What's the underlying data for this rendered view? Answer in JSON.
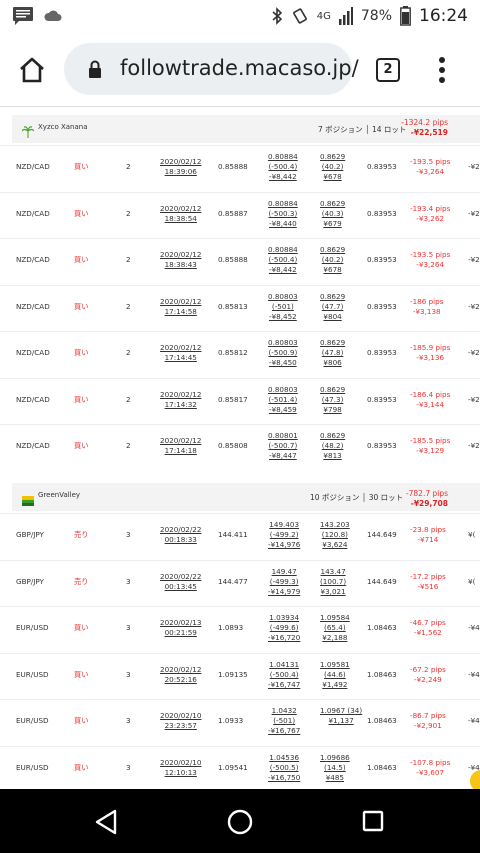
{
  "status_bar": {
    "time": "16:24",
    "battery": "78%",
    "network": "4G"
  },
  "browser": {
    "url": "followtrade.macaso.jp/",
    "tab_count": "2"
  },
  "groups": [
    {
      "name": "Xyzco Xanana",
      "summary": "7 ポジション │ 14 ロット",
      "pips": "-1324.2 pips",
      "yen": "-¥22,519",
      "rows": [
        {
          "pair": "NZD/CAD",
          "side": "買い",
          "qty": "2",
          "date": "2020/02/12",
          "time": "18:39:06",
          "open": "0.85888",
          "sl": [
            "0.80884",
            "(-500.4)",
            "-¥8,442"
          ],
          "tp": [
            "0.8629",
            "(40.2)",
            "¥678"
          ],
          "current": "0.83953",
          "pips": "-193.5 pips",
          "yen": "-¥3,264",
          "rest": "-¥2"
        },
        {
          "pair": "NZD/CAD",
          "side": "買い",
          "qty": "2",
          "date": "2020/02/12",
          "time": "18:38:54",
          "open": "0.85887",
          "sl": [
            "0.80884",
            "(-500.3)",
            "-¥8,440"
          ],
          "tp": [
            "0.8629",
            "(40.3)",
            "¥679"
          ],
          "current": "0.83953",
          "pips": "-193.4 pips",
          "yen": "-¥3,262",
          "rest": "-¥2"
        },
        {
          "pair": "NZD/CAD",
          "side": "買い",
          "qty": "2",
          "date": "2020/02/12",
          "time": "18:38:43",
          "open": "0.85888",
          "sl": [
            "0.80884",
            "(-500.4)",
            "-¥8,442"
          ],
          "tp": [
            "0.8629",
            "(40.2)",
            "¥678"
          ],
          "current": "0.83953",
          "pips": "-193.5 pips",
          "yen": "-¥3,264",
          "rest": "-¥2"
        },
        {
          "pair": "NZD/CAD",
          "side": "買い",
          "qty": "2",
          "date": "2020/02/12",
          "time": "17:14:58",
          "open": "0.85813",
          "sl": [
            "0.80803",
            "(-501)",
            "-¥8,452"
          ],
          "tp": [
            "0.8629",
            "(47.7)",
            "¥804"
          ],
          "current": "0.83953",
          "pips": "-186 pips",
          "yen": "-¥3,138",
          "rest": "-¥2"
        },
        {
          "pair": "NZD/CAD",
          "side": "買い",
          "qty": "2",
          "date": "2020/02/12",
          "time": "17:14:45",
          "open": "0.85812",
          "sl": [
            "0.80803",
            "(-500.9)",
            "-¥8,450"
          ],
          "tp": [
            "0.8629",
            "(47.8)",
            "¥806"
          ],
          "current": "0.83953",
          "pips": "-185.9 pips",
          "yen": "-¥3,136",
          "rest": "-¥2"
        },
        {
          "pair": "NZD/CAD",
          "side": "買い",
          "qty": "2",
          "date": "2020/02/12",
          "time": "17:14:32",
          "open": "0.85817",
          "sl": [
            "0.80803",
            "(-501.4)",
            "-¥8,459"
          ],
          "tp": [
            "0.8629",
            "(47.3)",
            "¥798"
          ],
          "current": "0.83953",
          "pips": "-186.4 pips",
          "yen": "-¥3,144",
          "rest": "-¥2"
        },
        {
          "pair": "NZD/CAD",
          "side": "買い",
          "qty": "2",
          "date": "2020/02/12",
          "time": "17:14:18",
          "open": "0.85808",
          "sl": [
            "0.80801",
            "(-500.7)",
            "-¥8,447"
          ],
          "tp": [
            "0.8629",
            "(48.2)",
            "¥813"
          ],
          "current": "0.83953",
          "pips": "-185.5 pips",
          "yen": "-¥3,129",
          "rest": "-¥2"
        }
      ]
    },
    {
      "name": "GreenValley",
      "summary": "10 ポジション │ 30 ロット",
      "pips": "-782.7 pips",
      "yen": "-¥29,708",
      "rows": [
        {
          "pair": "GBP/JPY",
          "side": "売り",
          "qty": "3",
          "date": "2020/02/22",
          "time": "00:18:33",
          "open": "144.411",
          "sl": [
            "149.403",
            "(-499.2)",
            "-¥14,976"
          ],
          "tp": [
            "143.203",
            "(120.8)",
            "¥3,624"
          ],
          "current": "144.649",
          "pips": "-23.8 pips",
          "yen": "-¥714",
          "rest": "¥("
        },
        {
          "pair": "GBP/JPY",
          "side": "売り",
          "qty": "3",
          "date": "2020/02/22",
          "time": "00:13:45",
          "open": "144.477",
          "sl": [
            "149.47",
            "(-499.3)",
            "-¥14,979"
          ],
          "tp": [
            "143.47",
            "(100.7)",
            "¥3,021"
          ],
          "current": "144.649",
          "pips": "-17.2 pips",
          "yen": "-¥516",
          "rest": "¥("
        },
        {
          "pair": "EUR/USD",
          "side": "買い",
          "qty": "3",
          "date": "2020/02/13",
          "time": "00:21:59",
          "open": "1.0893",
          "sl": [
            "1.03934",
            "(-499.6)",
            "-¥16,720"
          ],
          "tp": [
            "1.09584",
            "(65.4)",
            "¥2,188"
          ],
          "current": "1.08463",
          "pips": "-46.7 pips",
          "yen": "-¥1,562",
          "rest": "-¥4"
        },
        {
          "pair": "EUR/USD",
          "side": "買い",
          "qty": "3",
          "date": "2020/02/12",
          "time": "20:52:16",
          "open": "1.09135",
          "sl": [
            "1.04131",
            "(-500.4)",
            "-¥16,747"
          ],
          "tp": [
            "1.09581",
            "(44.6)",
            "¥1,492"
          ],
          "current": "1.08463",
          "pips": "-67.2 pips",
          "yen": "-¥2,249",
          "rest": "-¥4"
        },
        {
          "pair": "EUR/USD",
          "side": "買い",
          "qty": "3",
          "date": "2020/02/10",
          "time": "23:23:57",
          "open": "1.0933",
          "sl": [
            "1.0432",
            "(-501)",
            "-¥16,767"
          ],
          "tp": [
            "1.0967 (34)",
            "¥1,137",
            ""
          ],
          "current": "1.08463",
          "pips": "-86.7 pips",
          "yen": "-¥2,901",
          "rest": "-¥4"
        },
        {
          "pair": "EUR/USD",
          "side": "買い",
          "qty": "3",
          "date": "2020/02/10",
          "time": "12:10:13",
          "open": "1.09541",
          "sl": [
            "1.04536",
            "(-500.5)",
            "-¥16,750"
          ],
          "tp": [
            "1.09686",
            "(14.5)",
            "¥485"
          ],
          "current": "1.08463",
          "pips": "-107.8 pips",
          "yen": "-¥3,607",
          "rest": "-¥4"
        }
      ]
    }
  ],
  "icons": {
    "message": "message-icon",
    "cloud": "cloud-icon",
    "home": "home-icon",
    "lock": "lock-icon",
    "menu": "menu-icon",
    "back": "back-icon",
    "nav_home": "nav-home-icon",
    "recents": "recents-icon"
  }
}
